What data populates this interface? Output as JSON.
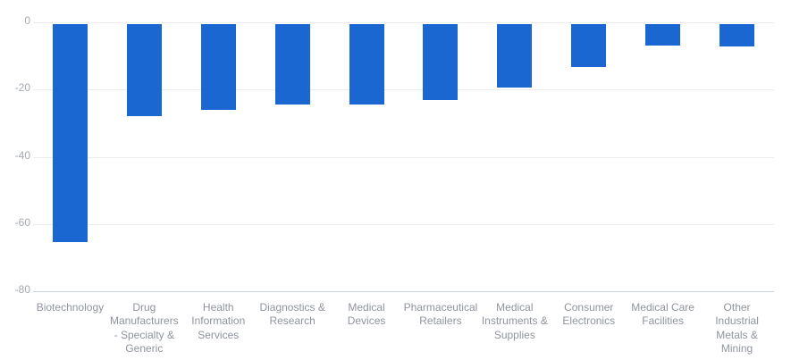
{
  "chart_data": {
    "type": "bar",
    "title": "",
    "xlabel": "",
    "ylabel": "",
    "categories": [
      "Biotechnology",
      "Drug Manufacturers - Specialty & Generic",
      "Health Information Services",
      "Diagnostics & Research",
      "Medical Devices",
      "Pharmaceutical Retailers",
      "Medical Instruments & Supplies",
      "Consumer Electronics",
      "Medical Care Facilities",
      "Other Industrial Metals & Mining"
    ],
    "values": [
      -65.5,
      -28,
      -26,
      -24.5,
      -24.5,
      -23,
      -19.5,
      -13.3,
      -7,
      -7.3
    ],
    "ylim": [
      -80,
      0
    ],
    "yticks": [
      0,
      -20,
      -40,
      -60,
      -80
    ],
    "ytick_labels": [
      "0",
      "-20",
      "-40",
      "-60",
      "-80"
    ],
    "xtick_label_lines": [
      [
        "Biotechnology"
      ],
      [
        "Drug",
        "Manufacturers",
        "- Specialty &",
        "Generic"
      ],
      [
        "Health",
        "Information",
        "Services"
      ],
      [
        "Diagnostics &",
        "Research"
      ],
      [
        "Medical",
        "Devices"
      ],
      [
        "Pharmaceutical",
        "Retailers"
      ],
      [
        "Medical",
        "Instruments &",
        "Supplies"
      ],
      [
        "Consumer",
        "Electronics"
      ],
      [
        "Medical Care",
        "Facilities"
      ],
      [
        "Other",
        "Industrial",
        "Metals &",
        "Mining"
      ]
    ],
    "grid": true,
    "legend": false,
    "colors": {
      "bar": "#1a67d2",
      "gridline": "#ececef",
      "axis_line": "#cbd4da",
      "ytick_label": "#a5a9b1",
      "xtick_label": "#8f949d",
      "background": "#ffffff"
    }
  }
}
